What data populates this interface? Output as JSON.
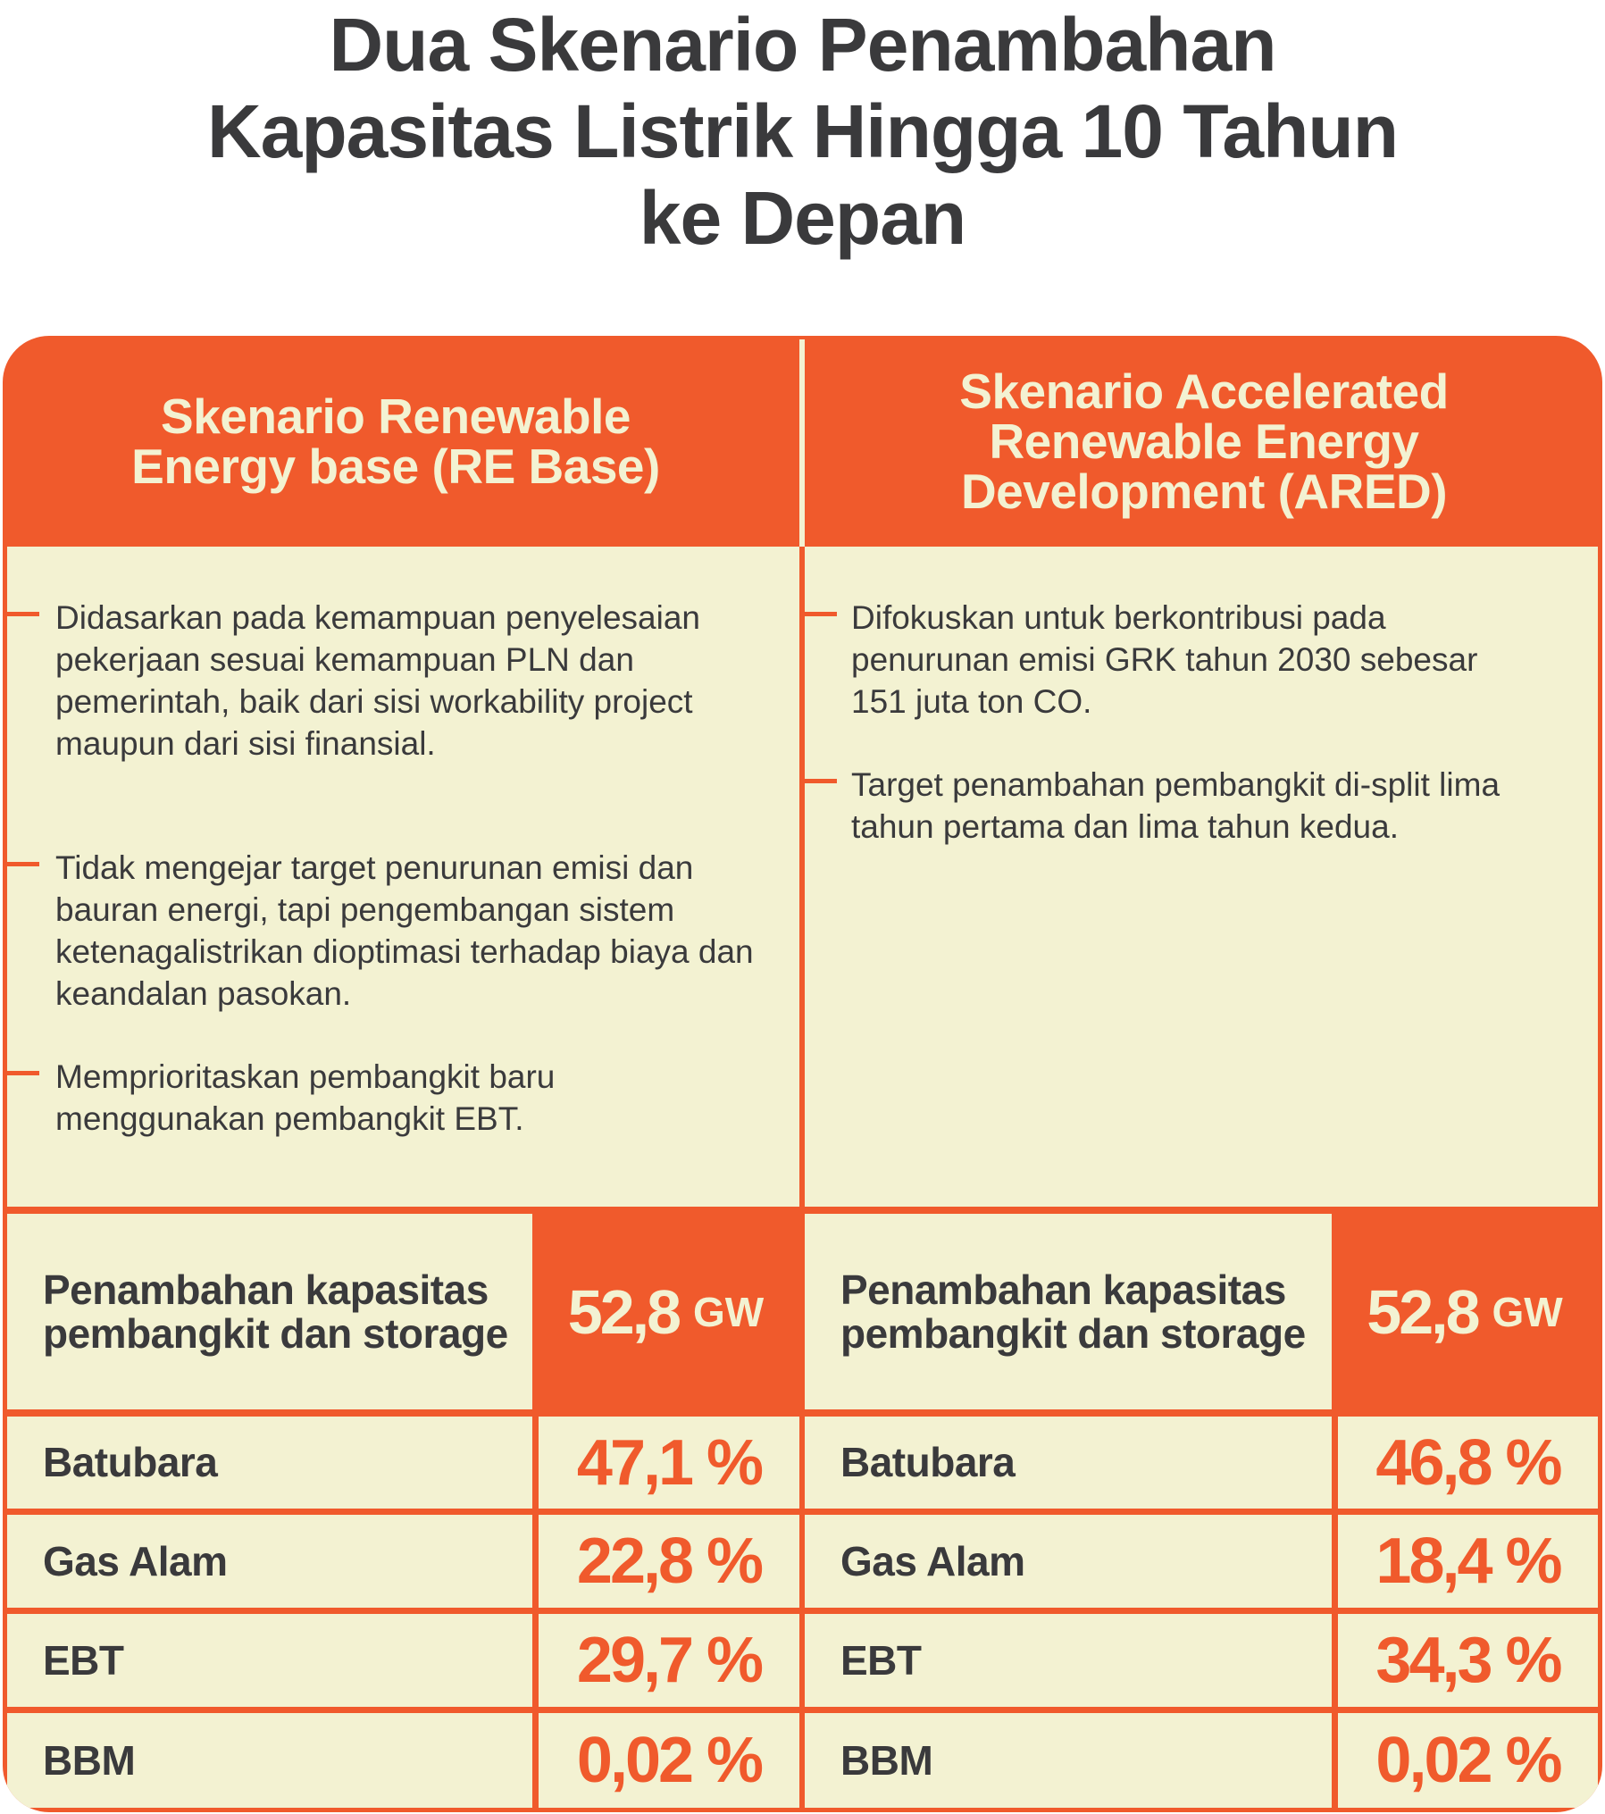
{
  "title": {
    "lines": [
      "Dua Skenario Penambahan",
      "Kapasitas Listrik Hingga 10 Tahun",
      "ke Depan"
    ]
  },
  "colors": {
    "accent": "#F05A2C",
    "background": "#F3F2D2",
    "text": "#3A3A3C"
  },
  "scenarios": [
    {
      "header": "Skenario Renewable Energy base (RE Base)",
      "bullets": [
        "Didasarkan pada kemampuan penyelesaian pekerjaan sesuai kemampuan PLN dan pemerintah, baik dari sisi workability project maupun dari sisi finansial.",
        "Tidak mengejar target penurunan emisi dan bauran energi, tapi pengembangan sistem ketenagalistrikan dioptimasi terhadap biaya dan keandalan pasokan.",
        "Memprioritaskan pembangkit baru menggunakan pembangkit EBT."
      ],
      "capacity_label": "Penambahan kapasitas pembangkit dan storage",
      "capacity_value": "52,8",
      "capacity_unit": "GW",
      "mix": [
        {
          "label": "Batubara",
          "value": "47,1 %"
        },
        {
          "label": "Gas Alam",
          "value": "22,8 %"
        },
        {
          "label": "EBT",
          "value": "29,7 %"
        },
        {
          "label": "BBM",
          "value": "0,02 %"
        }
      ]
    },
    {
      "header": "Skenario Accelerated Renewable Energy Development (ARED)",
      "bullets": [
        "Difokuskan untuk berkontribusi pada penurunan emisi GRK tahun 2030 sebesar 151 juta ton CO.",
        "Target penambahan pembangkit di-split lima tahun pertama dan lima tahun kedua."
      ],
      "capacity_label": "Penambahan kapasitas pembangkit dan storage",
      "capacity_value": "52,8",
      "capacity_unit": "GW",
      "mix": [
        {
          "label": "Batubara",
          "value": "46,8 %"
        },
        {
          "label": "Gas Alam",
          "value": "18,4 %"
        },
        {
          "label": "EBT",
          "value": "34,3 %"
        },
        {
          "label": "BBM",
          "value": "0,02 %"
        }
      ]
    }
  ]
}
